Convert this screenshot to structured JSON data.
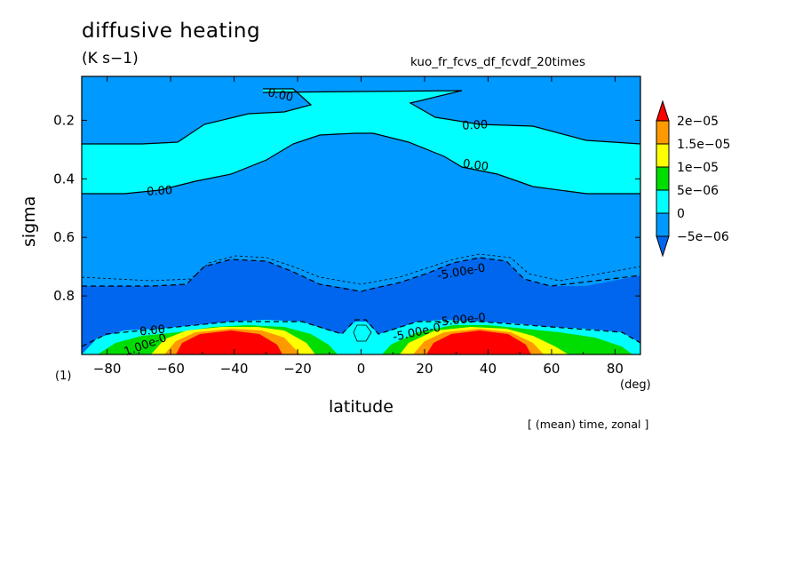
{
  "chart_data": {
    "type": "heatmap",
    "title": "diffusive heating",
    "units": "(K s−1)",
    "run_name": "kuo_fr_fcvs_df_fcvdf_20times",
    "panel_label": "(1)",
    "xlabel": "latitude",
    "x_unit": "(deg)",
    "ylabel": "sigma",
    "note": "[ (mean) time, zonal ]",
    "xlim": [
      -88,
      88
    ],
    "ylim": [
      0.05,
      1.0
    ],
    "y_reversed": true,
    "xticks": [
      -80,
      -60,
      -40,
      -20,
      0,
      20,
      40,
      60,
      80
    ],
    "yticks": [
      0.2,
      0.4,
      0.6,
      0.8
    ],
    "colorbar": {
      "levels": [
        "2e-05",
        "1.5e-05",
        "1e-05",
        "5e-06",
        "0",
        "-5e-06"
      ],
      "colors": [
        "#ff0000",
        "#ff9900",
        "#ffff00",
        "#00dd00",
        "#00ffff",
        "#0099ff",
        "#0066ee"
      ]
    },
    "contour_labels": [
      "0.00",
      "0.00",
      "0.00",
      "0.00",
      "-5.00e-0",
      "-5.00e-0",
      "0.00",
      "1.00e-0",
      "-5.00e-0"
    ],
    "regions": [
      {
        "level": "-5e-06 to 0",
        "description_value": -2.5e-06,
        "boundary": [
          [
            -88,
            0.76
          ],
          [
            -70,
            0.75
          ],
          [
            -55,
            0.74
          ],
          [
            -45,
            0.68
          ],
          [
            -20,
            0.7
          ],
          [
            -10,
            0.75
          ],
          [
            0,
            0.78
          ],
          [
            10,
            0.74
          ],
          [
            20,
            0.7
          ],
          [
            40,
            0.68
          ],
          [
            55,
            0.73
          ],
          [
            70,
            0.75
          ],
          [
            88,
            0.75
          ]
        ]
      },
      {
        "level": "0 to 5e-06",
        "description_value": 2.5e-06,
        "upper_band": [
          [
            -88,
            0.26
          ],
          [
            -65,
            0.26
          ],
          [
            -55,
            0.24
          ],
          [
            -40,
            0.2
          ],
          [
            -20,
            0.18
          ],
          [
            -5,
            0.1
          ],
          [
            -20,
            0.07
          ],
          [
            -30,
            0.07
          ]
        ],
        "lower_band": [
          [
            -88,
            0.43
          ],
          [
            -70,
            0.43
          ],
          [
            -50,
            0.38
          ],
          [
            -35,
            0.33
          ],
          [
            -20,
            0.28
          ],
          [
            -10,
            0.23
          ],
          [
            0,
            0.22
          ],
          [
            10,
            0.23
          ],
          [
            25,
            0.28
          ],
          [
            30,
            0.31
          ],
          [
            35,
            0.33
          ],
          [
            50,
            0.38
          ],
          [
            70,
            0.43
          ],
          [
            88,
            0.43
          ]
        ]
      },
      {
        "level": ">2e-05",
        "description_value": 2.2e-05,
        "maxima": [
          [
            -37,
            0.95
          ],
          [
            38,
            0.95
          ]
        ]
      }
    ]
  }
}
